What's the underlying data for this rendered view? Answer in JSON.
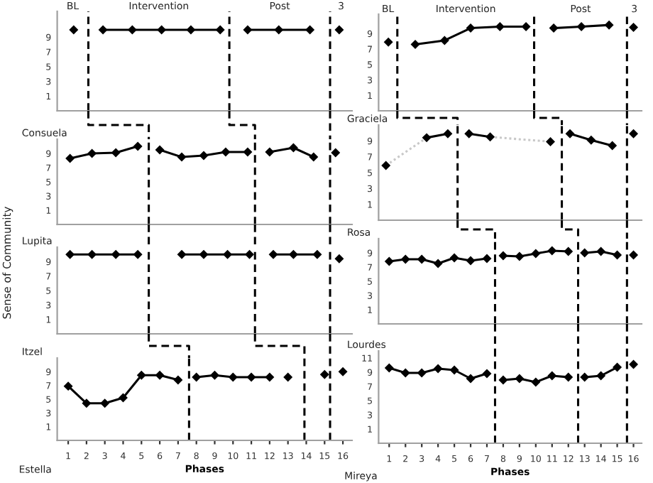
{
  "chart_data": [
    {
      "type": "line",
      "marker": "diamond",
      "line_style": "solid",
      "xlim": [
        0.4,
        16.5
      ],
      "ylim": [
        -1,
        12.5
      ],
      "yticks": [
        1,
        3,
        5,
        7,
        9
      ],
      "tick_labels": "y",
      "series": [
        {
          "color": "#000000",
          "x": [
            1.3
          ],
          "values": [
            10
          ]
        },
        {
          "color": "#000000",
          "x": [
            2.9,
            4.5,
            6.1,
            7.7,
            9.3
          ],
          "values": [
            10,
            10,
            10,
            10,
            10
          ]
        },
        {
          "color": "#000000",
          "x": [
            10.8,
            12.5,
            14.2
          ],
          "values": [
            10,
            10,
            10
          ]
        },
        {
          "color": "#000000",
          "x": [
            15.8
          ],
          "values": [
            10
          ]
        }
      ],
      "ref_lines": [
        {
          "axis": "x",
          "value": 2.1,
          "color": "#000000",
          "line_style": "dashed"
        },
        {
          "axis": "x",
          "value": 9.8,
          "color": "#000000",
          "line_style": "dashed"
        },
        {
          "axis": "x",
          "value": 15.3,
          "color": "#000000",
          "line_style": "dashed"
        }
      ],
      "annotations": [
        "BL",
        "Intervention",
        "Post",
        "3"
      ]
    },
    {
      "type": "line",
      "marker": "diamond",
      "line_style": "solid",
      "xlim": [
        0.35,
        16.5
      ],
      "ylim": [
        -1,
        11.5
      ],
      "yticks": [
        1,
        3,
        5,
        7,
        9
      ],
      "tick_labels": "y",
      "series": [
        {
          "color": "#000000",
          "x": [
            0.95
          ],
          "values": [
            7.9
          ]
        },
        {
          "color": "#000000",
          "x": [
            2.6,
            4.4,
            6.0,
            7.8,
            9.4
          ],
          "values": [
            7.6,
            8.1,
            9.7,
            9.9,
            9.9
          ]
        },
        {
          "color": "#000000",
          "x": [
            11.1,
            12.8,
            14.5
          ],
          "values": [
            9.7,
            9.9,
            10.1
          ]
        },
        {
          "color": "#000000",
          "x": [
            16
          ],
          "values": [
            9.8
          ]
        }
      ],
      "ref_lines": [
        {
          "axis": "x",
          "value": 1.5,
          "color": "#000000",
          "line_style": "dashed"
        },
        {
          "axis": "x",
          "value": 9.9,
          "color": "#000000",
          "line_style": "dashed"
        },
        {
          "axis": "x",
          "value": 15.6,
          "color": "#000000",
          "line_style": "dashed"
        }
      ],
      "annotations": [
        "BL",
        "Intervention",
        "Post",
        "3"
      ]
    },
    {
      "type": "line",
      "marker": "diamond",
      "line_style": "solid",
      "title": "Consuela",
      "ylabel": "Sense of Community",
      "xlim": [
        0.4,
        16.5
      ],
      "ylim": [
        -1,
        11
      ],
      "yticks": [
        1,
        3,
        5,
        7,
        9
      ],
      "tick_labels": "y",
      "series": [
        {
          "color": "#000000",
          "x": [
            1.1,
            2.3,
            3.6,
            4.8
          ],
          "values": [
            8.3,
            9,
            9.1,
            10
          ]
        },
        {
          "color": "#000000",
          "x": [
            6.0,
            7.2,
            8.4,
            9.6,
            10.8
          ],
          "values": [
            9.5,
            8.5,
            8.7,
            9.2,
            9.2
          ]
        },
        {
          "color": "#000000",
          "x": [
            12.0,
            13.3,
            14.4
          ],
          "values": [
            9.2,
            9.8,
            8.5
          ]
        },
        {
          "color": "#000000",
          "x": [
            15.6
          ],
          "values": [
            9.1
          ]
        }
      ],
      "ref_lines": [
        {
          "axis": "x",
          "value": 5.4,
          "color": "#000000",
          "line_style": "dashed"
        },
        {
          "axis": "x",
          "value": 11.2,
          "color": "#000000",
          "line_style": "dashed"
        },
        {
          "axis": "x",
          "value": 15.3,
          "color": "#000000",
          "line_style": "dashed"
        }
      ]
    },
    {
      "type": "line",
      "marker": "diamond",
      "line_style": "solid",
      "title": "Graciela",
      "xlim": [
        0.35,
        16.5
      ],
      "ylim": [
        -1,
        11
      ],
      "yticks": [
        1,
        3,
        5,
        7,
        9
      ],
      "tick_labels": "y",
      "series": [
        {
          "color": "#c8c8c8",
          "line_style": "dotted",
          "marker": "none",
          "x": [
            0.8,
            3.3
          ],
          "values": [
            5.9,
            9.4
          ]
        },
        {
          "color": "#c8c8c8",
          "line_style": "dotted",
          "marker": "none",
          "x": [
            7.2,
            10.9
          ],
          "values": [
            9.5,
            8.9
          ]
        },
        {
          "color": "#000000",
          "x": [
            0.8
          ],
          "values": [
            5.9
          ]
        },
        {
          "color": "#000000",
          "x": [
            3.3,
            4.6
          ],
          "values": [
            9.4,
            9.9
          ]
        },
        {
          "color": "#000000",
          "x": [
            5.9,
            7.2
          ],
          "values": [
            9.9,
            9.5
          ]
        },
        {
          "color": "#000000",
          "x": [
            10.9
          ],
          "values": [
            8.9
          ]
        },
        {
          "color": "#000000",
          "x": [
            12.1,
            13.4,
            14.7
          ],
          "values": [
            9.9,
            9.1,
            8.4
          ]
        },
        {
          "color": "#000000",
          "x": [
            16
          ],
          "values": [
            9.9
          ]
        }
      ],
      "ref_lines": [
        {
          "axis": "x",
          "value": 5.2,
          "color": "#000000",
          "line_style": "dashed"
        },
        {
          "axis": "x",
          "value": 11.6,
          "color": "#000000",
          "line_style": "dashed"
        },
        {
          "axis": "x",
          "value": 15.6,
          "color": "#000000",
          "line_style": "dashed"
        }
      ]
    },
    {
      "type": "line",
      "marker": "diamond",
      "line_style": "solid",
      "title": "Lupita",
      "xlim": [
        0.4,
        16.5
      ],
      "ylim": [
        -1,
        11
      ],
      "yticks": [
        1,
        3,
        5,
        7,
        9
      ],
      "tick_labels": "y",
      "series": [
        {
          "color": "#000000",
          "x": [
            1.1,
            2.3,
            3.6,
            4.8
          ],
          "values": [
            10,
            10,
            10,
            10
          ]
        },
        {
          "color": "#000000",
          "x": [
            7.2,
            8.4,
            9.7,
            10.9
          ],
          "values": [
            10,
            10,
            10,
            10
          ]
        },
        {
          "color": "#000000",
          "x": [
            12.2,
            13.3,
            14.6
          ],
          "values": [
            10,
            10,
            10
          ]
        },
        {
          "color": "#000000",
          "x": [
            15.8
          ],
          "values": [
            9.4
          ]
        }
      ],
      "ref_lines": [
        {
          "axis": "x",
          "value": 5.4,
          "color": "#000000",
          "line_style": "dashed"
        },
        {
          "axis": "x",
          "value": 11.2,
          "color": "#000000",
          "line_style": "dashed"
        },
        {
          "axis": "x",
          "value": 15.3,
          "color": "#000000",
          "line_style": "dashed"
        }
      ]
    },
    {
      "type": "line",
      "marker": "diamond",
      "line_style": "solid",
      "title": "Rosa",
      "xlim": [
        0.35,
        16.5
      ],
      "ylim": [
        -1,
        11
      ],
      "yticks": [
        1,
        3,
        5,
        7,
        9
      ],
      "tick_labels": "y",
      "series": [
        {
          "color": "#000000",
          "x": [
            1,
            2,
            3,
            4,
            5,
            6,
            7
          ],
          "values": [
            7.8,
            8.1,
            8.1,
            7.5,
            8.3,
            7.9,
            8.2
          ]
        },
        {
          "color": "#000000",
          "x": [
            8,
            9,
            10,
            11,
            12
          ],
          "values": [
            8.6,
            8.5,
            8.9,
            9.3,
            9.2
          ]
        },
        {
          "color": "#000000",
          "x": [
            13,
            14,
            15
          ],
          "values": [
            9.0,
            9.2,
            8.7
          ]
        },
        {
          "color": "#000000",
          "x": [
            16
          ],
          "values": [
            8.7
          ]
        }
      ],
      "ref_lines": [
        {
          "axis": "x",
          "value": 7.5,
          "color": "#000000",
          "line_style": "dashed"
        },
        {
          "axis": "x",
          "value": 12.6,
          "color": "#000000",
          "line_style": "dashed"
        },
        {
          "axis": "x",
          "value": 15.6,
          "color": "#000000",
          "line_style": "dashed"
        }
      ]
    },
    {
      "type": "line",
      "marker": "diamond",
      "line_style": "solid",
      "title": "Itzel",
      "xlabel": "Phases",
      "xlim": [
        0.4,
        16.5
      ],
      "ylim": [
        -1,
        11
      ],
      "yticks": [
        1,
        3,
        5,
        7,
        9
      ],
      "xticks": [
        1,
        2,
        3,
        4,
        5,
        6,
        7,
        8,
        9,
        10,
        11,
        12,
        13,
        14,
        15,
        16
      ],
      "series": [
        {
          "color": "#000000",
          "x": [
            1,
            2,
            3,
            4,
            5,
            6,
            7
          ],
          "values": [
            6.9,
            4.4,
            4.4,
            5.2,
            8.5,
            8.5,
            7.8
          ]
        },
        {
          "color": "#000000",
          "x": [
            8,
            9,
            10,
            11,
            12
          ],
          "values": [
            8.2,
            8.5,
            8.2,
            8.2,
            8.2
          ]
        },
        {
          "color": "#000000",
          "x": [
            13
          ],
          "values": [
            8.2
          ]
        },
        {
          "color": "#000000",
          "x": [
            15
          ],
          "values": [
            8.6
          ]
        },
        {
          "color": "#000000",
          "x": [
            16
          ],
          "values": [
            9.0
          ]
        }
      ],
      "ref_lines": [
        {
          "axis": "x",
          "value": 7.6,
          "color": "#000000",
          "line_style": "dashed"
        },
        {
          "axis": "x",
          "value": 13.9,
          "color": "#000000",
          "line_style": "dashed"
        },
        {
          "axis": "x",
          "value": 15.3,
          "color": "#000000",
          "line_style": "dashed"
        }
      ],
      "annotations": [
        "Estella"
      ]
    },
    {
      "type": "line",
      "marker": "diamond",
      "line_style": "solid",
      "title": "Lourdes",
      "xlabel": "Phases",
      "xlim": [
        0.35,
        16.5
      ],
      "ylim": [
        -1,
        12
      ],
      "yticks": [
        1,
        3,
        5,
        7,
        9,
        11
      ],
      "xticks": [
        1,
        2,
        3,
        4,
        5,
        6,
        7,
        8,
        9,
        10,
        11,
        12,
        13,
        14,
        15,
        16
      ],
      "series": [
        {
          "color": "#000000",
          "x": [
            1,
            2,
            3,
            4,
            5,
            6,
            7
          ],
          "values": [
            9.6,
            8.9,
            8.9,
            9.5,
            9.3,
            8.1,
            8.8
          ]
        },
        {
          "color": "#000000",
          "x": [
            8,
            9,
            10,
            11,
            12
          ],
          "values": [
            7.9,
            8.1,
            7.6,
            8.5,
            8.3
          ]
        },
        {
          "color": "#000000",
          "x": [
            13,
            14,
            15
          ],
          "values": [
            8.3,
            8.5,
            9.7
          ]
        },
        {
          "color": "#000000",
          "x": [
            16
          ],
          "values": [
            10.1
          ]
        }
      ],
      "ref_lines": [
        {
          "axis": "x",
          "value": 7.5,
          "color": "#000000",
          "line_style": "dashed"
        },
        {
          "axis": "x",
          "value": 12.6,
          "color": "#000000",
          "line_style": "dashed"
        },
        {
          "axis": "x",
          "value": 15.6,
          "color": "#000000",
          "line_style": "dashed"
        }
      ],
      "annotations": [
        "Mireya"
      ]
    }
  ]
}
